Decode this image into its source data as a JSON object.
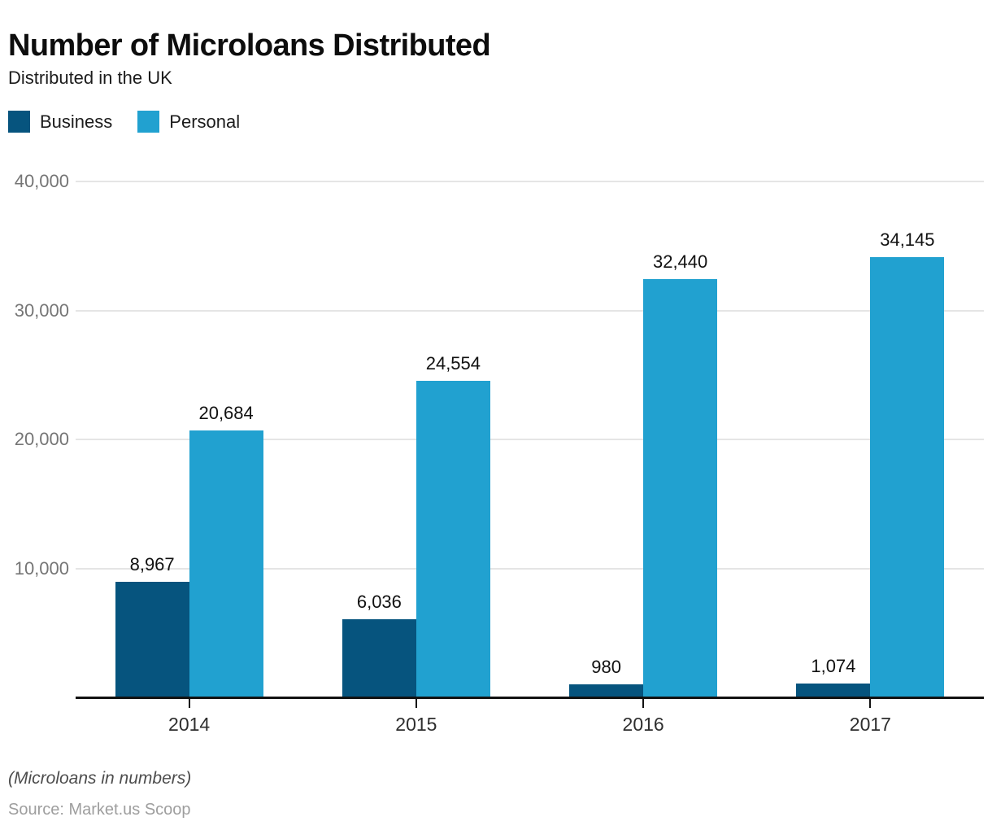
{
  "header": {
    "title": "Number of Microloans Distributed",
    "subtitle": "Distributed in the UK"
  },
  "legend": [
    {
      "label": "Business",
      "color": "#06547e"
    },
    {
      "label": "Personal",
      "color": "#21a1d0"
    }
  ],
  "chart_data": {
    "type": "bar",
    "title": "Number of Microloans Distributed",
    "subtitle": "Distributed in the UK",
    "categories": [
      "2014",
      "2015",
      "2016",
      "2017"
    ],
    "series": [
      {
        "name": "Business",
        "color": "#06547e",
        "values": [
          8967,
          6036,
          980,
          1074
        ],
        "value_labels": [
          "8,967",
          "6,036",
          "980",
          "1,074"
        ]
      },
      {
        "name": "Personal",
        "color": "#21a1d0",
        "values": [
          20684,
          24554,
          32440,
          34145
        ],
        "value_labels": [
          "20,684",
          "24,554",
          "32,440",
          "34,145"
        ]
      }
    ],
    "xlabel": "",
    "ylabel": "",
    "ylim": [
      0,
      40000
    ],
    "yticks": [
      10000,
      20000,
      30000,
      40000
    ],
    "ytick_labels": [
      "10,000",
      "20,000",
      "30,000",
      "40,000"
    ],
    "grid": true,
    "legend_position": "top-left",
    "units_note": "(Microloans in numbers)"
  },
  "footer": {
    "note": "(Microloans in numbers)",
    "source": "Source: Market.us Scoop"
  },
  "colors": {
    "grid": "#e5e5e5",
    "axis": "#121212",
    "ytick_label": "#757575",
    "xtick_label": "#2e2e2e",
    "value_label": "#111111"
  }
}
